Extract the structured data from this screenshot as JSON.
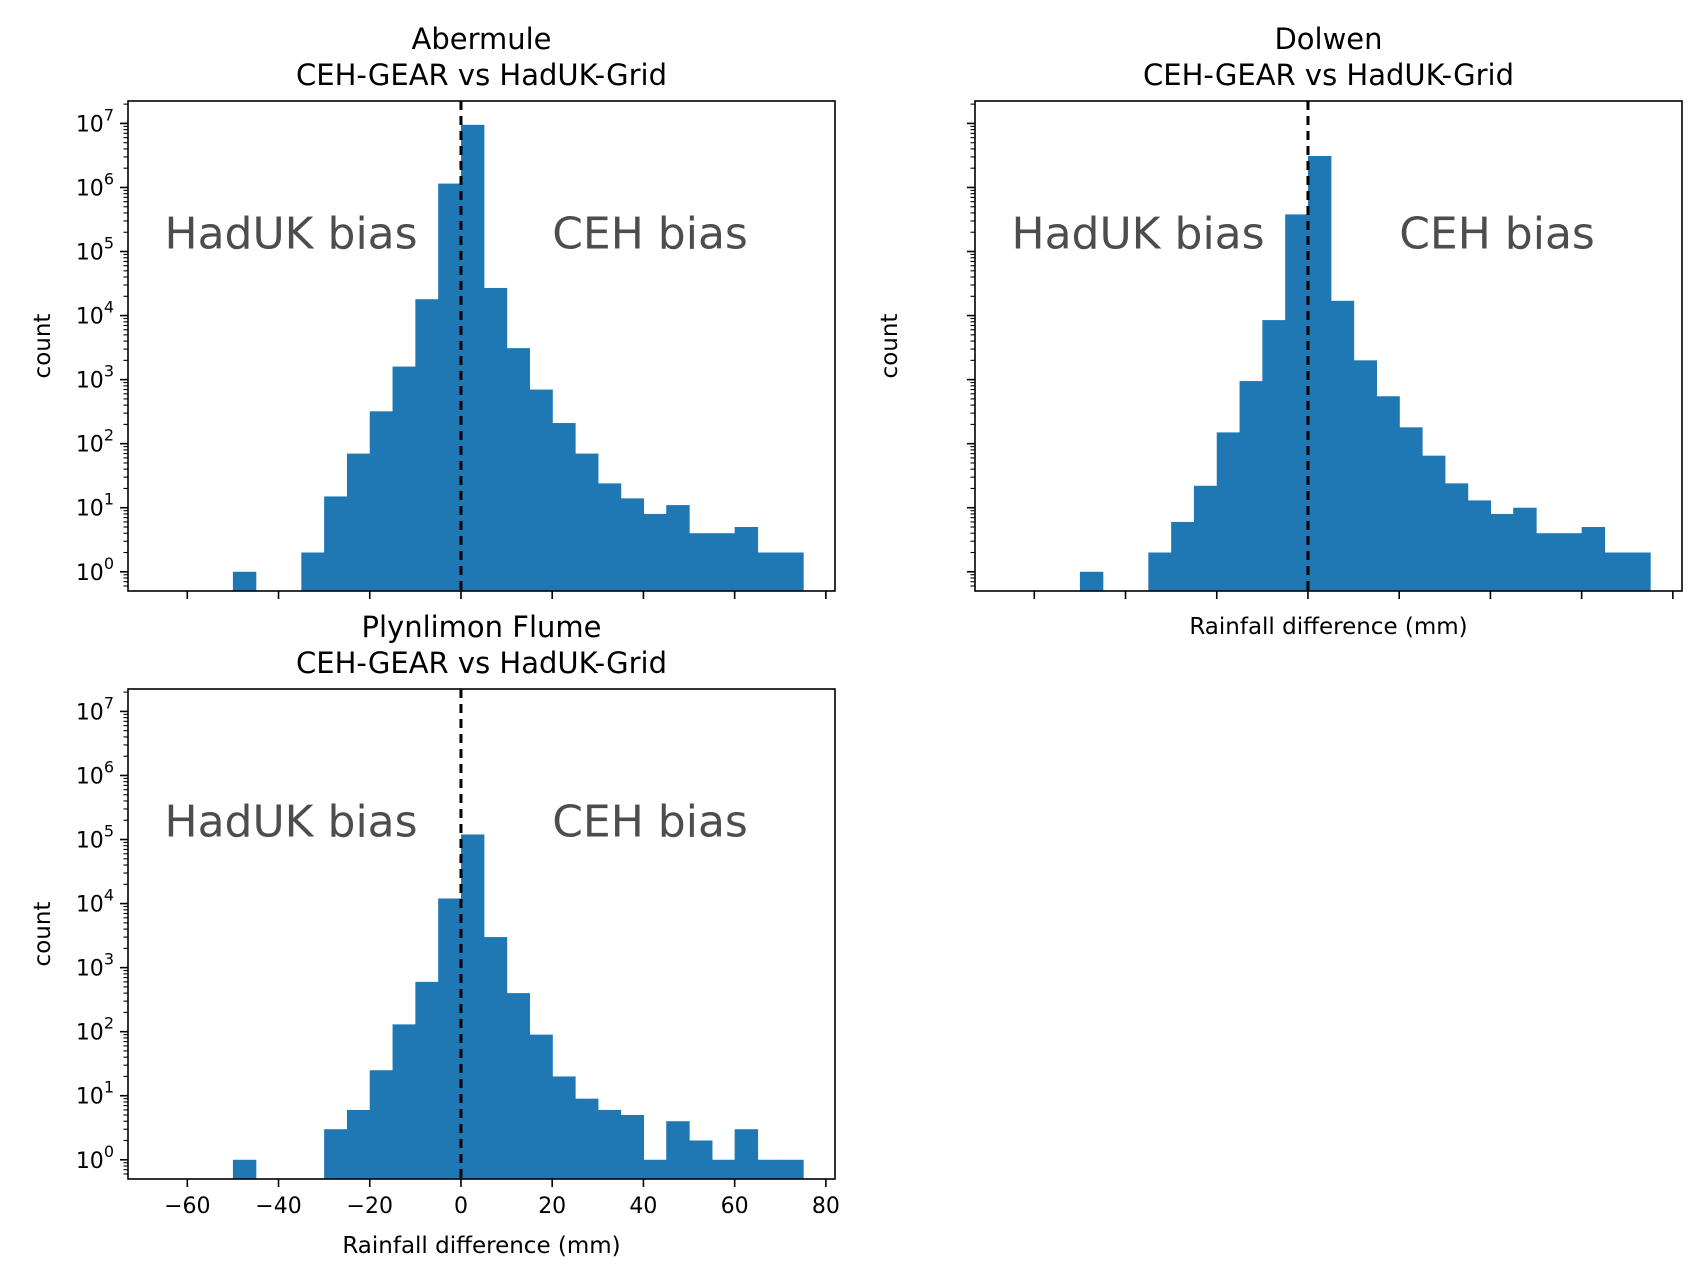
{
  "colors": {
    "bar": "#1f77b4",
    "frame": "#000000",
    "bias_text": "#4d4d4d",
    "zero_line": "#000000"
  },
  "chart_data": [
    {
      "type": "bar",
      "subplot": "top-left",
      "title": "Abermule\nCEH-GEAR vs HadUK-Grid",
      "title_lines": [
        "Abermule",
        "CEH-GEAR vs HadUK-Grid"
      ],
      "xlabel": "",
      "ylabel": "count",
      "yscale": "log",
      "xlim": [
        -73,
        82
      ],
      "ylim_exp": [
        -0.3,
        7.35
      ],
      "bin_edges": [
        -50,
        -45,
        -40,
        -35,
        -30,
        -25,
        -20,
        -15,
        -10,
        -5,
        0,
        5,
        10,
        15,
        20,
        25,
        30,
        35,
        40,
        45,
        50,
        55,
        60,
        65,
        70,
        75
      ],
      "counts": [
        1,
        0,
        0,
        2,
        15,
        70,
        320,
        1600,
        18000,
        1150000,
        9500000,
        27000,
        3100,
        700,
        210,
        70,
        24,
        14,
        8,
        11,
        4,
        4,
        5,
        2,
        2
      ],
      "x_ticks": [
        -60,
        -40,
        -20,
        0,
        20,
        40,
        60,
        80
      ],
      "show_x_ticklabels": false,
      "show_y_ticklabels": true,
      "y_tick_exponents": [
        0,
        1,
        2,
        3,
        4,
        5,
        6,
        7
      ],
      "zero_line": 0,
      "annotations": [
        "HadUK bias",
        "CEH bias"
      ],
      "grid": false
    },
    {
      "type": "bar",
      "subplot": "top-right",
      "title": "Dolwen\nCEH-GEAR vs HadUK-Grid",
      "title_lines": [
        "Dolwen",
        "CEH-GEAR vs HadUK-Grid"
      ],
      "xlabel": "Rainfall difference (mm)",
      "ylabel": "count",
      "yscale": "log",
      "xlim": [
        -73,
        82
      ],
      "ylim_exp": [
        -0.3,
        7.35
      ],
      "bin_edges": [
        -50,
        -45,
        -40,
        -35,
        -30,
        -25,
        -20,
        -15,
        -10,
        -5,
        0,
        5,
        10,
        15,
        20,
        25,
        30,
        35,
        40,
        45,
        50,
        55,
        60,
        65,
        70,
        75
      ],
      "counts": [
        1,
        0,
        0,
        2,
        6,
        22,
        150,
        950,
        8500,
        380000,
        3100000,
        17000,
        2000,
        550,
        180,
        65,
        24,
        13,
        8,
        10,
        4,
        4,
        5,
        2,
        2
      ],
      "x_ticks": [
        -60,
        -40,
        -20,
        0,
        20,
        40,
        60,
        80
      ],
      "show_x_ticklabels": false,
      "show_y_ticklabels": false,
      "y_tick_exponents": [
        0,
        1,
        2,
        3,
        4,
        5,
        6,
        7
      ],
      "zero_line": 0,
      "annotations": [
        "HadUK bias",
        "CEH bias"
      ],
      "grid": false
    },
    {
      "type": "bar",
      "subplot": "bottom-left",
      "title": "Plynlimon Flume\nCEH-GEAR vs HadUK-Grid",
      "title_lines": [
        "Plynlimon Flume",
        "CEH-GEAR vs HadUK-Grid"
      ],
      "xlabel": "Rainfall difference (mm)",
      "ylabel": "count",
      "yscale": "log",
      "xlim": [
        -73,
        82
      ],
      "ylim_exp": [
        -0.3,
        7.35
      ],
      "bin_edges": [
        -50,
        -45,
        -40,
        -35,
        -30,
        -25,
        -20,
        -15,
        -10,
        -5,
        0,
        5,
        10,
        15,
        20,
        25,
        30,
        35,
        40,
        45,
        50,
        55,
        60,
        65,
        70,
        75
      ],
      "counts": [
        1,
        0,
        0,
        0,
        3,
        6,
        25,
        130,
        600,
        12000,
        120000,
        3000,
        400,
        90,
        20,
        9,
        6,
        5,
        1,
        4,
        2,
        1,
        3,
        1,
        1
      ],
      "x_ticks": [
        -60,
        -40,
        -20,
        0,
        20,
        40,
        60,
        80
      ],
      "show_x_ticklabels": true,
      "show_y_ticklabels": true,
      "y_tick_exponents": [
        0,
        1,
        2,
        3,
        4,
        5,
        6,
        7
      ],
      "zero_line": 0,
      "annotations": [
        "HadUK bias",
        "CEH bias"
      ],
      "grid": false
    }
  ]
}
